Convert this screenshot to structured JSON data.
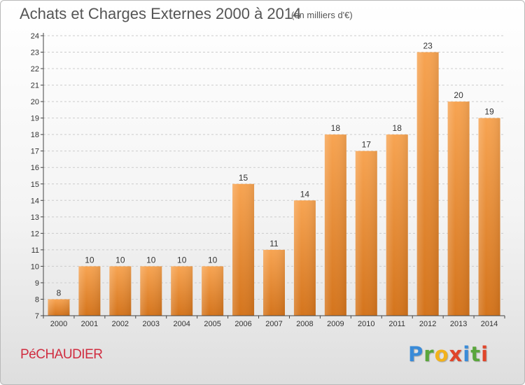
{
  "header": {
    "title": "Achats et Charges Externes 2000 à 2014",
    "unit": "(en milliers d'€)"
  },
  "footer": {
    "commune": "PéCHAUDIER",
    "brand": "Proxiti"
  },
  "colors": {
    "bar_light": "#f7a452",
    "bar_dark": "#d4741c",
    "axis": "#444444",
    "grid": "#cccccc",
    "commune_text": "#d02d40"
  },
  "chart_data": {
    "type": "bar",
    "title": "Achats et Charges Externes 2000 à 2014",
    "subtitle": "(en milliers d'€)",
    "categories": [
      "2000",
      "2001",
      "2002",
      "2003",
      "2004",
      "2005",
      "2006",
      "2007",
      "2008",
      "2009",
      "2010",
      "2011",
      "2012",
      "2013",
      "2014"
    ],
    "values": [
      8,
      10,
      10,
      10,
      10,
      10,
      15,
      11,
      14,
      18,
      17,
      18,
      23,
      20,
      19
    ],
    "ylim": [
      7,
      24
    ],
    "yticks": [
      7,
      8,
      9,
      10,
      11,
      12,
      13,
      14,
      15,
      16,
      17,
      18,
      19,
      20,
      21,
      22,
      23,
      24
    ],
    "grid": true,
    "data_labels": true,
    "legend": "none"
  }
}
